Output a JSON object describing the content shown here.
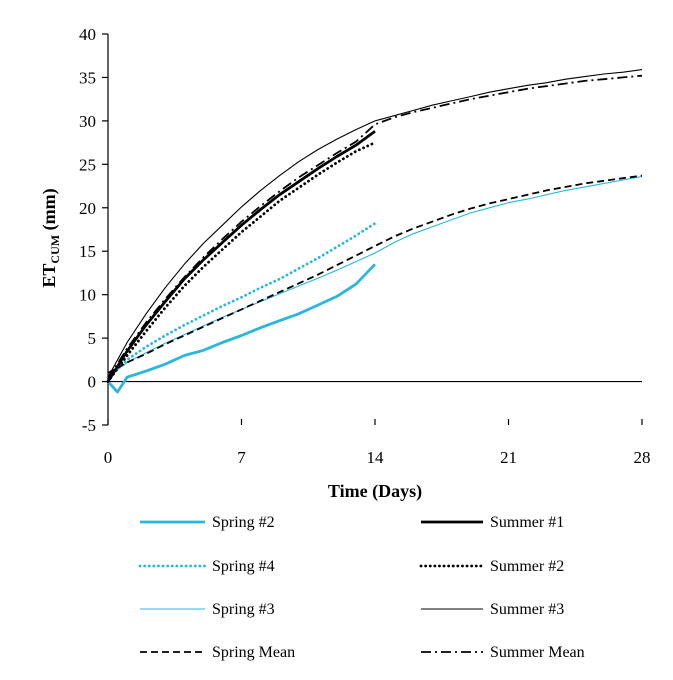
{
  "chart_data": {
    "type": "line",
    "xlabel": "Time (Days)",
    "ylabel_main": "ET",
    "ylabel_sub": "CUM",
    "ylabel_unit": " (mm)",
    "xlim": [
      0,
      28
    ],
    "ylim": [
      -5,
      40
    ],
    "xticks": [
      0,
      7,
      14,
      21,
      28
    ],
    "yticks": [
      -5,
      0,
      5,
      10,
      15,
      20,
      25,
      30,
      35,
      40
    ],
    "grid": false,
    "legend_position": "bottom",
    "colors": {
      "spring": "#29b6e0",
      "summer": "#000000"
    },
    "series": [
      {
        "name": "Spring #2",
        "color": "#29b6e0",
        "style": "solid",
        "weight": "thick",
        "x": [
          0,
          0.5,
          1,
          2,
          3,
          4,
          5,
          6,
          7,
          8,
          9,
          10,
          11,
          12,
          13,
          14
        ],
        "y": [
          0,
          -1.2,
          0.5,
          1.2,
          2.0,
          3.0,
          3.6,
          4.5,
          5.3,
          6.2,
          7.0,
          7.8,
          8.8,
          9.8,
          11.2,
          13.5
        ]
      },
      {
        "name": "Spring #4",
        "color": "#29b6e0",
        "style": "dotted",
        "weight": "thick",
        "x": [
          0,
          1,
          2,
          3,
          4,
          5,
          6,
          7,
          8,
          9,
          10,
          11,
          12,
          13,
          14
        ],
        "y": [
          0.5,
          2.5,
          4.0,
          5.3,
          6.5,
          7.6,
          8.7,
          9.7,
          10.8,
          11.8,
          13.0,
          14.2,
          15.5,
          16.8,
          18.2
        ]
      },
      {
        "name": "Spring #3",
        "color": "#29b6e0",
        "style": "solid",
        "weight": "thin",
        "x": [
          0,
          1,
          2,
          3,
          4,
          5,
          6,
          7,
          8,
          9,
          10,
          11,
          12,
          13,
          14,
          15,
          16,
          17,
          18,
          19,
          20,
          21,
          22,
          23,
          24,
          25,
          26,
          27,
          28
        ],
        "y": [
          0.5,
          2.2,
          3.3,
          4.4,
          5.4,
          6.4,
          7.4,
          8.3,
          9.2,
          10.1,
          11.0,
          11.9,
          12.8,
          13.8,
          14.8,
          16.0,
          17.0,
          17.8,
          18.6,
          19.4,
          20.0,
          20.6,
          21.0,
          21.5,
          22.0,
          22.4,
          22.8,
          23.2,
          23.6
        ]
      },
      {
        "name": "Spring Mean",
        "color": "#000000",
        "style": "dashed",
        "weight": "medium",
        "x": [
          0,
          1,
          2,
          3,
          4,
          5,
          6,
          7,
          8,
          9,
          10,
          11,
          12,
          13,
          14,
          15,
          16,
          17,
          18,
          19,
          20,
          21,
          22,
          23,
          24,
          25,
          26,
          27,
          28
        ],
        "y": [
          1.0,
          2.2,
          3.2,
          4.3,
          5.3,
          6.3,
          7.3,
          8.3,
          9.3,
          10.3,
          11.3,
          12.3,
          13.4,
          14.5,
          15.6,
          16.7,
          17.6,
          18.4,
          19.2,
          19.9,
          20.5,
          21.0,
          21.5,
          22.0,
          22.4,
          22.8,
          23.1,
          23.4,
          23.7
        ]
      },
      {
        "name": "Summer #1",
        "color": "#000000",
        "style": "solid",
        "weight": "thick",
        "x": [
          0,
          1,
          2,
          3,
          4,
          5,
          6,
          7,
          8,
          9,
          10,
          11,
          12,
          13,
          14
        ],
        "y": [
          0,
          3.5,
          6.5,
          9.2,
          11.8,
          14.0,
          16.0,
          18.0,
          19.8,
          21.5,
          23.0,
          24.5,
          25.9,
          27.2,
          28.8
        ]
      },
      {
        "name": "Summer #2",
        "color": "#000000",
        "style": "dotted",
        "weight": "thick",
        "x": [
          0,
          1,
          2,
          3,
          4,
          5,
          6,
          7,
          8,
          9,
          10,
          11,
          12,
          13,
          14
        ],
        "y": [
          0,
          3.0,
          5.8,
          8.5,
          11.0,
          13.2,
          15.2,
          17.2,
          19.0,
          20.8,
          22.3,
          23.8,
          25.2,
          26.5,
          27.5
        ]
      },
      {
        "name": "Summer #3",
        "color": "#000000",
        "style": "solid",
        "weight": "thin",
        "x": [
          0,
          1,
          2,
          3,
          4,
          5,
          6,
          7,
          8,
          9,
          10,
          11,
          12,
          13,
          14,
          15,
          16,
          17,
          18,
          19,
          20,
          21,
          22,
          23,
          24,
          25,
          26,
          27,
          28
        ],
        "y": [
          0.5,
          4.5,
          7.8,
          10.8,
          13.5,
          15.9,
          18.0,
          20.1,
          22.0,
          23.7,
          25.3,
          26.7,
          27.9,
          29.0,
          30.0,
          30.6,
          31.2,
          31.8,
          32.3,
          32.8,
          33.3,
          33.7,
          34.1,
          34.4,
          34.8,
          35.1,
          35.4,
          35.6,
          35.9
        ]
      },
      {
        "name": "Summer Mean",
        "color": "#000000",
        "style": "dashdot",
        "weight": "medium",
        "x": [
          0,
          1,
          2,
          3,
          4,
          5,
          6,
          7,
          8,
          9,
          10,
          11,
          12,
          13,
          14,
          15,
          16,
          17,
          18,
          19,
          20,
          21,
          22,
          23,
          24,
          25,
          26,
          27,
          28
        ],
        "y": [
          0.3,
          3.8,
          6.8,
          9.5,
          12.0,
          14.3,
          16.4,
          18.4,
          20.2,
          21.9,
          23.5,
          24.9,
          26.3,
          27.6,
          29.6,
          30.4,
          31.0,
          31.5,
          32.0,
          32.5,
          32.9,
          33.3,
          33.7,
          34.0,
          34.3,
          34.6,
          34.8,
          35.0,
          35.2
        ]
      }
    ]
  }
}
